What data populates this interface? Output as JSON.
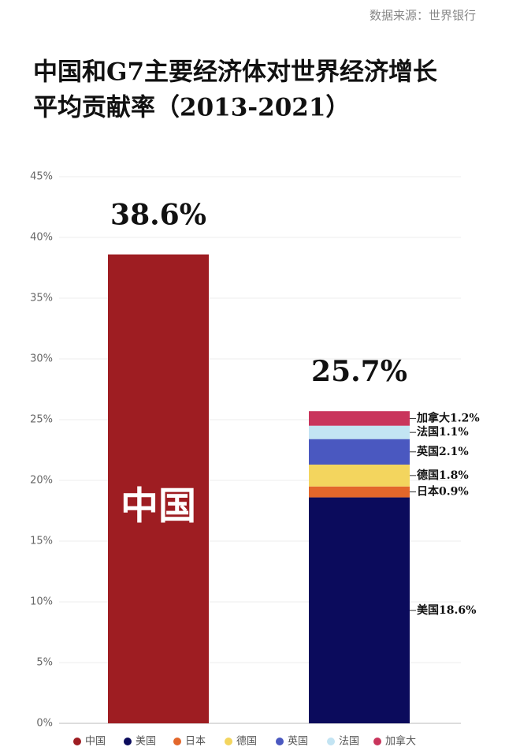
{
  "source": "数据来源：世界银行",
  "chart_data": {
    "type": "stacked-bar",
    "title": [
      "中国和G7主要经济体对世界经济增长",
      "平均贡献率（2013-2021）"
    ],
    "categories": [
      null,
      null
    ],
    "series": [
      {
        "name": "中国",
        "color": "#9e1d22",
        "values": [
          38.6,
          null
        ]
      },
      {
        "name": "美国",
        "color": "#0b0b5c",
        "values": [
          null,
          18.6
        ],
        "value_labels": [
          null,
          "美国18.6%"
        ]
      },
      {
        "name": "日本",
        "color": "#e3672b",
        "values": [
          null,
          0.9
        ],
        "value_labels": [
          null,
          "日本0.9%"
        ]
      },
      {
        "name": "德国",
        "color": "#f3d55e",
        "values": [
          null,
          1.8
        ],
        "value_labels": [
          null,
          "德国1.8%"
        ]
      },
      {
        "name": "英国",
        "color": "#4a58c0",
        "values": [
          null,
          2.1
        ],
        "value_labels": [
          null,
          "英国2.1%"
        ]
      },
      {
        "name": "法国",
        "color": "#c3e4f3",
        "values": [
          null,
          1.1
        ],
        "value_labels": [
          null,
          "法国1.1%"
        ]
      },
      {
        "name": "加拿大",
        "color": "#c9355c",
        "values": [
          null,
          1.2
        ],
        "value_labels": [
          null,
          "加拿大1.2%"
        ]
      }
    ],
    "totals": [
      38.6,
      25.7
    ],
    "total_labels": [
      "38.6%",
      "25.7%"
    ],
    "ylim": [
      0,
      45
    ],
    "yticks": [
      {
        "value": 0,
        "label": "0%"
      },
      {
        "value": 5,
        "label": "5%"
      },
      {
        "value": 10,
        "label": "10%"
      },
      {
        "value": 15,
        "label": "15%"
      },
      {
        "value": 20,
        "label": "20%"
      },
      {
        "value": 25,
        "label": "25%"
      },
      {
        "value": 30,
        "label": "30%"
      },
      {
        "value": 35,
        "label": "35%"
      },
      {
        "value": 40,
        "label": "40%"
      },
      {
        "value": 45,
        "label": "45%"
      }
    ],
    "grid": true,
    "legend": "bottom"
  }
}
